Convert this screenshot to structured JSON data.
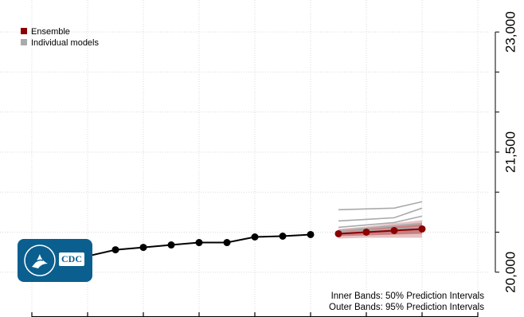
{
  "chart_data": {
    "type": "line",
    "title": "",
    "xlabel": "",
    "ylabel": "",
    "x_ticks": 8,
    "ylim": [
      19500,
      23300
    ],
    "yticks": [
      20000,
      21500,
      23000
    ],
    "ytick_labels": [
      "20,000",
      "21,500",
      "23,000"
    ],
    "grid": true,
    "legend": {
      "placement": "top-left",
      "entries": [
        {
          "label": "Ensemble",
          "color": "#8b0000"
        },
        {
          "label": "Individual models",
          "color": "#aaaaaa"
        }
      ]
    },
    "observed": {
      "color": "#000000",
      "x": [
        1,
        2,
        3,
        4,
        5,
        6,
        7,
        8,
        9,
        10
      ],
      "values": [
        20170,
        20200,
        20280,
        20310,
        20340,
        20370,
        20370,
        20440,
        20450,
        20470
      ]
    },
    "ensemble": {
      "color": "#8b0000",
      "x": [
        11,
        12,
        13,
        14
      ],
      "values": [
        20480,
        20500,
        20520,
        20540
      ],
      "band50": {
        "lower": [
          20450,
          20460,
          20470,
          20480
        ],
        "upper": [
          20510,
          20540,
          20570,
          20600
        ]
      },
      "band95": {
        "lower": [
          20420,
          20430,
          20430,
          20430
        ],
        "upper": [
          20540,
          20570,
          20610,
          20650
        ]
      }
    },
    "individual_models": {
      "color": "#aaaaaa",
      "x": [
        11,
        12,
        13,
        14
      ],
      "series": [
        [
          20780,
          20790,
          20800,
          20880
        ],
        [
          20640,
          20660,
          20680,
          20800
        ],
        [
          20560,
          20590,
          20620,
          20700
        ],
        [
          20520,
          20550,
          20580,
          20610
        ],
        [
          20500,
          20520,
          20540,
          20560
        ]
      ]
    },
    "notes": [
      "Inner Bands: 50% Prediction Intervals",
      "Outer Bands: 95% Prediction Intervals"
    ]
  },
  "logo": {
    "text": "CDC",
    "color": "#0b5f8f"
  }
}
